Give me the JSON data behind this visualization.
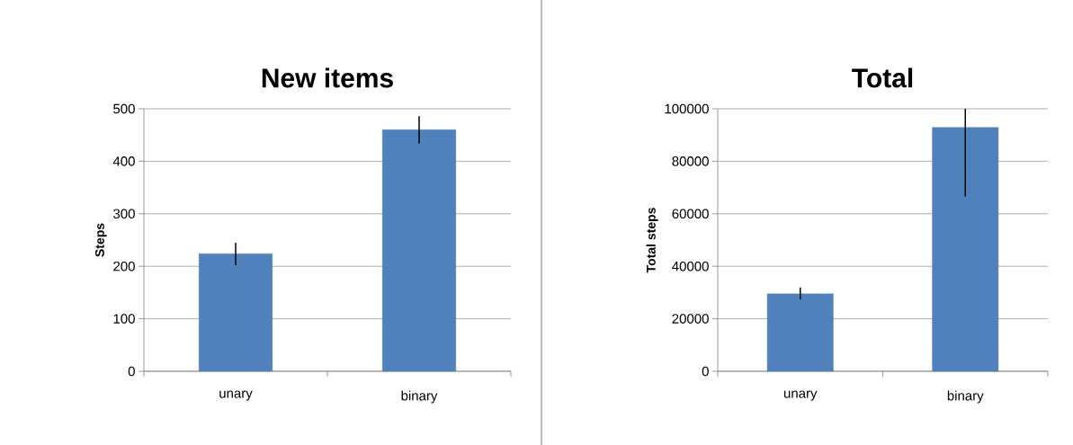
{
  "chart_data": [
    {
      "type": "bar",
      "title": "New items",
      "ylabel": "Steps",
      "categories": [
        "unary",
        "binary"
      ],
      "values": [
        224,
        460
      ],
      "errors": [
        [
          202,
          245
        ],
        [
          434,
          486
        ]
      ],
      "color": "#4f81bd",
      "ylim": [
        0,
        500
      ],
      "yticks": [
        0,
        100,
        200,
        300,
        400,
        500
      ],
      "grid": "y"
    },
    {
      "type": "bar",
      "title": "Total",
      "ylabel": "Total steps",
      "categories": [
        "unary",
        "binary"
      ],
      "values": [
        29500,
        92900
      ],
      "errors": [
        [
          27400,
          31900
        ],
        [
          66600,
          100000
        ]
      ],
      "color": "#4f81bd",
      "ylim": [
        0,
        100000
      ],
      "yticks": [
        0,
        20000,
        40000,
        60000,
        80000,
        100000
      ],
      "grid": "y"
    }
  ]
}
